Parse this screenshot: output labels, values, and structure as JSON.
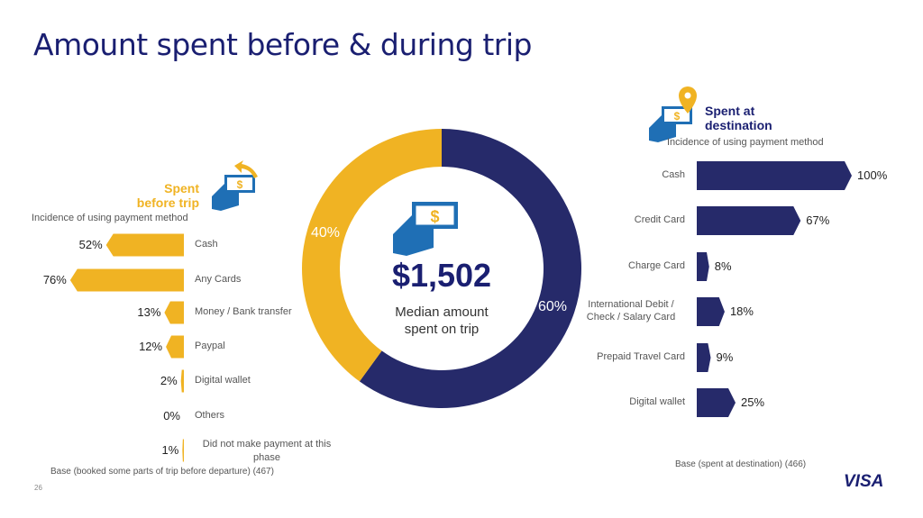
{
  "title": "Amount spent before & during trip",
  "page_number": "26",
  "logo": "VISA",
  "colors": {
    "navy": "#262a6a",
    "gold": "#f0b323",
    "icon_blue": "#1f6fb5"
  },
  "center": {
    "amount": "$1,502",
    "line1": "Median amount",
    "line2": "spent on trip"
  },
  "chart_data": [
    {
      "type": "pie",
      "subtype": "donut",
      "slices": [
        {
          "label": "Spent at destination",
          "value": 60,
          "data_label": "60%",
          "color": "#262a6a"
        },
        {
          "label": "Spent before trip",
          "value": 40,
          "data_label": "40%",
          "color": "#f0b323"
        }
      ]
    },
    {
      "type": "bar",
      "orientation": "horizontal-left",
      "title_line1": "Spent",
      "title_line2": "before trip",
      "subtitle": "Incidence of using payment method",
      "categories": [
        "Cash",
        "Any Cards",
        "Money / Bank transfer",
        "Paypal",
        "Digital wallet",
        "Others",
        "Did not make payment at this phase"
      ],
      "values": [
        52,
        76,
        13,
        12,
        2,
        0,
        1
      ],
      "data_labels": [
        "52%",
        "76%",
        "13%",
        "12%",
        "2%",
        "0%",
        "1%"
      ],
      "base": "Base (booked some parts of trip before departure) (467)"
    },
    {
      "type": "bar",
      "orientation": "horizontal",
      "title_line1": "Spent at",
      "title_line2": "destination",
      "subtitle": "Incidence of using payment method",
      "categories": [
        "Cash",
        "Credit Card",
        "Charge Card",
        "International Debit / Check / Salary Card",
        "Prepaid Travel Card",
        "Digital wallet"
      ],
      "values": [
        100,
        67,
        8,
        18,
        9,
        25
      ],
      "data_labels": [
        "100%",
        "67%",
        "8%",
        "18%",
        "9%",
        "25%"
      ],
      "base": "Base (spent at destination) (466)"
    }
  ]
}
